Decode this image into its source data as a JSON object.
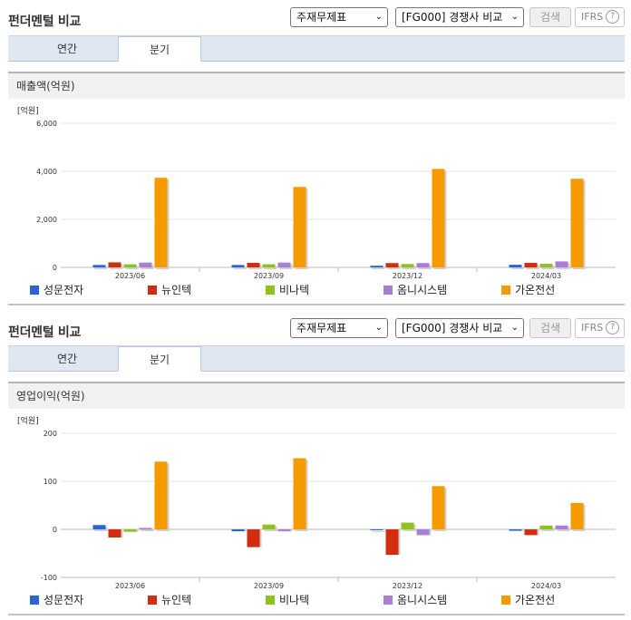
{
  "panels": [
    {
      "title": "펀더멘털 비교",
      "select_statement": "주재무제표",
      "select_compare": "[FG000] 경쟁사 비교",
      "search_label": "검색",
      "ifrs_label": "IFRS",
      "help_icon": "?",
      "tabs": [
        "연간",
        "분기"
      ],
      "active_tab": "분기",
      "metric_label": "매출액(억원)",
      "unit_label": "[억원]",
      "chart_data": {
        "type": "bar",
        "title": "매출액(억원)",
        "ylabel": "[억원]",
        "ylim": [
          0,
          6000
        ],
        "yticks": [
          0,
          2000,
          4000,
          6000
        ],
        "ytick_labels": [
          "0",
          "2,000",
          "4,000",
          "6,000"
        ],
        "categories": [
          "2023/06",
          "2023/09",
          "2023/12",
          "2024/03"
        ],
        "series": [
          {
            "name": "성문전자",
            "color": "#2a64d6",
            "values": [
              100,
              100,
              70,
              110
            ]
          },
          {
            "name": "뉴인텍",
            "color": "#d12e0f",
            "values": [
              210,
              190,
              180,
              190
            ]
          },
          {
            "name": "비나텍",
            "color": "#8dc21f",
            "values": [
              130,
              130,
              140,
              150
            ]
          },
          {
            "name": "옴니시스템",
            "color": "#a97fd6",
            "values": [
              200,
              200,
              180,
              250
            ]
          },
          {
            "name": "가온전선",
            "color": "#f59b00",
            "values": [
              3730,
              3350,
              4100,
              3690
            ]
          }
        ]
      }
    },
    {
      "title": "펀더멘털 비교",
      "select_statement": "주재무제표",
      "select_compare": "[FG000] 경쟁사 비교",
      "search_label": "검색",
      "ifrs_label": "IFRS",
      "help_icon": "?",
      "tabs": [
        "연간",
        "분기"
      ],
      "active_tab": "분기",
      "metric_label": "영업이익(억원)",
      "unit_label": "[억원]",
      "chart_data": {
        "type": "bar",
        "title": "영업이익(억원)",
        "ylabel": "[억원]",
        "ylim": [
          -100,
          200
        ],
        "yticks": [
          -100,
          0,
          100,
          200
        ],
        "ytick_labels": [
          "-100",
          "0",
          "100",
          "200"
        ],
        "categories": [
          "2023/06",
          "2023/09",
          "2023/12",
          "2024/03"
        ],
        "series": [
          {
            "name": "성문전자",
            "color": "#2a64d6",
            "values": [
              9,
              -4,
              0,
              -3
            ]
          },
          {
            "name": "뉴인텍",
            "color": "#d12e0f",
            "values": [
              -17,
              -37,
              -53,
              -12
            ]
          },
          {
            "name": "비나텍",
            "color": "#8dc21f",
            "values": [
              -5,
              10,
              14,
              8
            ]
          },
          {
            "name": "옴니시스템",
            "color": "#a97fd6",
            "values": [
              3,
              -4,
              -12,
              8
            ]
          },
          {
            "name": "가온전선",
            "color": "#f59b00",
            "values": [
              141,
              148,
              90,
              55
            ]
          }
        ]
      }
    }
  ]
}
